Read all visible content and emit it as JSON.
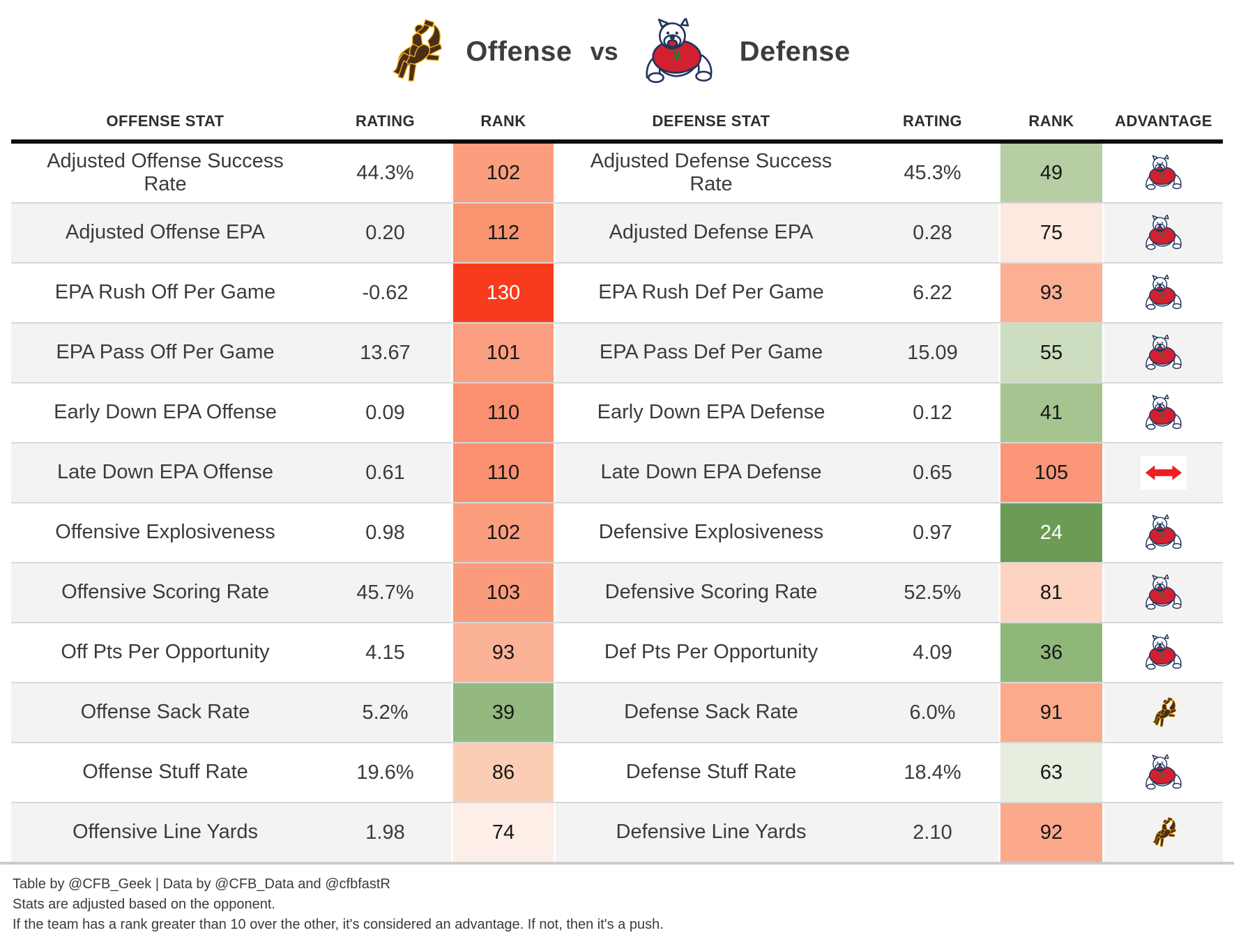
{
  "header": {
    "left_team": "Wyoming Cowboys",
    "left_label": "Offense",
    "vs_label": "vs",
    "right_team": "Fresno State Bulldogs",
    "right_label": "Defense"
  },
  "chart_data": {
    "type": "table",
    "title": "Offense vs Defense",
    "columns": [
      "OFFENSE STAT",
      "RATING",
      "RANK",
      "DEFENSE STAT",
      "RATING",
      "RANK",
      "ADVANTAGE"
    ],
    "legend_note": "rank cell color scale: red = worse national rank, green = better national rank",
    "rows": [
      {
        "offense_stat": "Adjusted Offense Success Rate",
        "offense_rating": "44.3%",
        "offense_rank": "102",
        "offense_rank_bg": "#FB9E7E",
        "offense_rank_fg": "#161616",
        "defense_stat": "Adjusted Defense Success Rate",
        "defense_rating": "45.3%",
        "defense_rank": "49",
        "defense_rank_bg": "#B7CEA4",
        "defense_rank_fg": "#161616",
        "advantage": "fresno"
      },
      {
        "offense_stat": "Adjusted Offense EPA",
        "offense_rating": "0.20",
        "offense_rank": "112",
        "offense_rank_bg": "#FA9470",
        "offense_rank_fg": "#161616",
        "defense_stat": "Adjusted Defense EPA",
        "defense_rating": "0.28",
        "defense_rank": "75",
        "defense_rank_bg": "#FDE9DF",
        "defense_rank_fg": "#161616",
        "advantage": "fresno"
      },
      {
        "offense_stat": "EPA Rush Off Per Game",
        "offense_rating": "-0.62",
        "offense_rank": "130",
        "offense_rank_bg": "#F93B1D",
        "offense_rank_fg": "#ffffff",
        "defense_stat": "EPA Rush Def Per Game",
        "defense_rating": "6.22",
        "defense_rank": "93",
        "defense_rank_bg": "#FBB093",
        "defense_rank_fg": "#161616",
        "advantage": "fresno"
      },
      {
        "offense_stat": "EPA Pass Off Per Game",
        "offense_rating": "13.67",
        "offense_rank": "101",
        "offense_rank_bg": "#FB9F80",
        "offense_rank_fg": "#161616",
        "defense_stat": "EPA Pass Def Per Game",
        "defense_rating": "15.09",
        "defense_rank": "55",
        "defense_rank_bg": "#CCDEBF",
        "defense_rank_fg": "#161616",
        "advantage": "fresno"
      },
      {
        "offense_stat": "Early Down EPA Offense",
        "offense_rating": "0.09",
        "offense_rank": "110",
        "offense_rank_bg": "#FA9070",
        "offense_rank_fg": "#161616",
        "defense_stat": "Early Down EPA Defense",
        "defense_rating": "0.12",
        "defense_rank": "41",
        "defense_rank_bg": "#A5C48F",
        "defense_rank_fg": "#161616",
        "advantage": "fresno"
      },
      {
        "offense_stat": "Late Down EPA Offense",
        "offense_rating": "0.61",
        "offense_rank": "110",
        "offense_rank_bg": "#FA9070",
        "offense_rank_fg": "#161616",
        "defense_stat": "Late Down EPA Defense",
        "defense_rating": "0.65",
        "defense_rank": "105",
        "defense_rank_bg": "#FA9677",
        "defense_rank_fg": "#161616",
        "advantage": "push"
      },
      {
        "offense_stat": "Offensive Explosiveness",
        "offense_rating": "0.98",
        "offense_rank": "102",
        "offense_rank_bg": "#FB9E7E",
        "offense_rank_fg": "#161616",
        "defense_stat": "Defensive Explosiveness",
        "defense_rating": "0.97",
        "defense_rank": "24",
        "defense_rank_bg": "#6B9B55",
        "defense_rank_fg": "#ffffff",
        "advantage": "fresno"
      },
      {
        "offense_stat": "Offensive Scoring Rate",
        "offense_rating": "45.7%",
        "offense_rank": "103",
        "offense_rank_bg": "#FA9C7C",
        "offense_rank_fg": "#161616",
        "defense_stat": "Defensive Scoring Rate",
        "defense_rating": "52.5%",
        "defense_rank": "81",
        "defense_rank_bg": "#FCD4C1",
        "defense_rank_fg": "#161616",
        "advantage": "fresno"
      },
      {
        "offense_stat": "Off Pts Per Opportunity",
        "offense_rating": "4.15",
        "offense_rank": "93",
        "offense_rank_bg": "#FBB297",
        "offense_rank_fg": "#161616",
        "defense_stat": "Def Pts Per Opportunity",
        "defense_rating": "4.09",
        "defense_rank": "36",
        "defense_rank_bg": "#90B77A",
        "defense_rank_fg": "#161616",
        "advantage": "fresno"
      },
      {
        "offense_stat": "Offense Sack Rate",
        "offense_rating": "5.2%",
        "offense_rank": "39",
        "offense_rank_bg": "#93B97F",
        "offense_rank_fg": "#161616",
        "defense_stat": "Defense Sack Rate",
        "defense_rating": "6.0%",
        "defense_rank": "91",
        "defense_rank_bg": "#FBAA8B",
        "defense_rank_fg": "#161616",
        "advantage": "wyoming"
      },
      {
        "offense_stat": "Offense Stuff Rate",
        "offense_rating": "19.6%",
        "offense_rank": "86",
        "offense_rank_bg": "#FCCDB5",
        "offense_rank_fg": "#161616",
        "defense_stat": "Defense Stuff Rate",
        "defense_rating": "18.4%",
        "defense_rank": "63",
        "defense_rank_bg": "#E7EEDF",
        "defense_rank_fg": "#161616",
        "advantage": "fresno"
      },
      {
        "offense_stat": "Offensive Line Yards",
        "offense_rating": "1.98",
        "offense_rank": "74",
        "offense_rank_bg": "#FDEEE7",
        "offense_rank_fg": "#161616",
        "defense_stat": "Defensive Line Yards",
        "defense_rating": "2.10",
        "defense_rank": "92",
        "defense_rank_bg": "#FBA98A",
        "defense_rank_fg": "#161616",
        "advantage": "wyoming"
      }
    ]
  },
  "icons": {
    "fresno": "fresno-state-bulldog-logo",
    "wyoming": "wyoming-cowboys-logo",
    "push": "push-arrow-icon"
  },
  "colors": {
    "worst_rank_red": "#F93B1D",
    "best_rank_green": "#6B9B55",
    "row_alt": "#F3F3F3",
    "push_arrow_red": "#EE1C23",
    "wyoming_brown": "#4B2E18",
    "wyoming_gold": "#F7B718",
    "fresno_red": "#D22030",
    "fresno_navy": "#23355C"
  },
  "footer": {
    "credit": "Table by @CFB_Geek | Data by @CFB_Data and @cfbfastR",
    "note1": "Stats are adjusted based on the opponent.",
    "note2": "If the team has a rank greater than 10 over the other, it's considered an advantage. If not, then it's a push."
  }
}
